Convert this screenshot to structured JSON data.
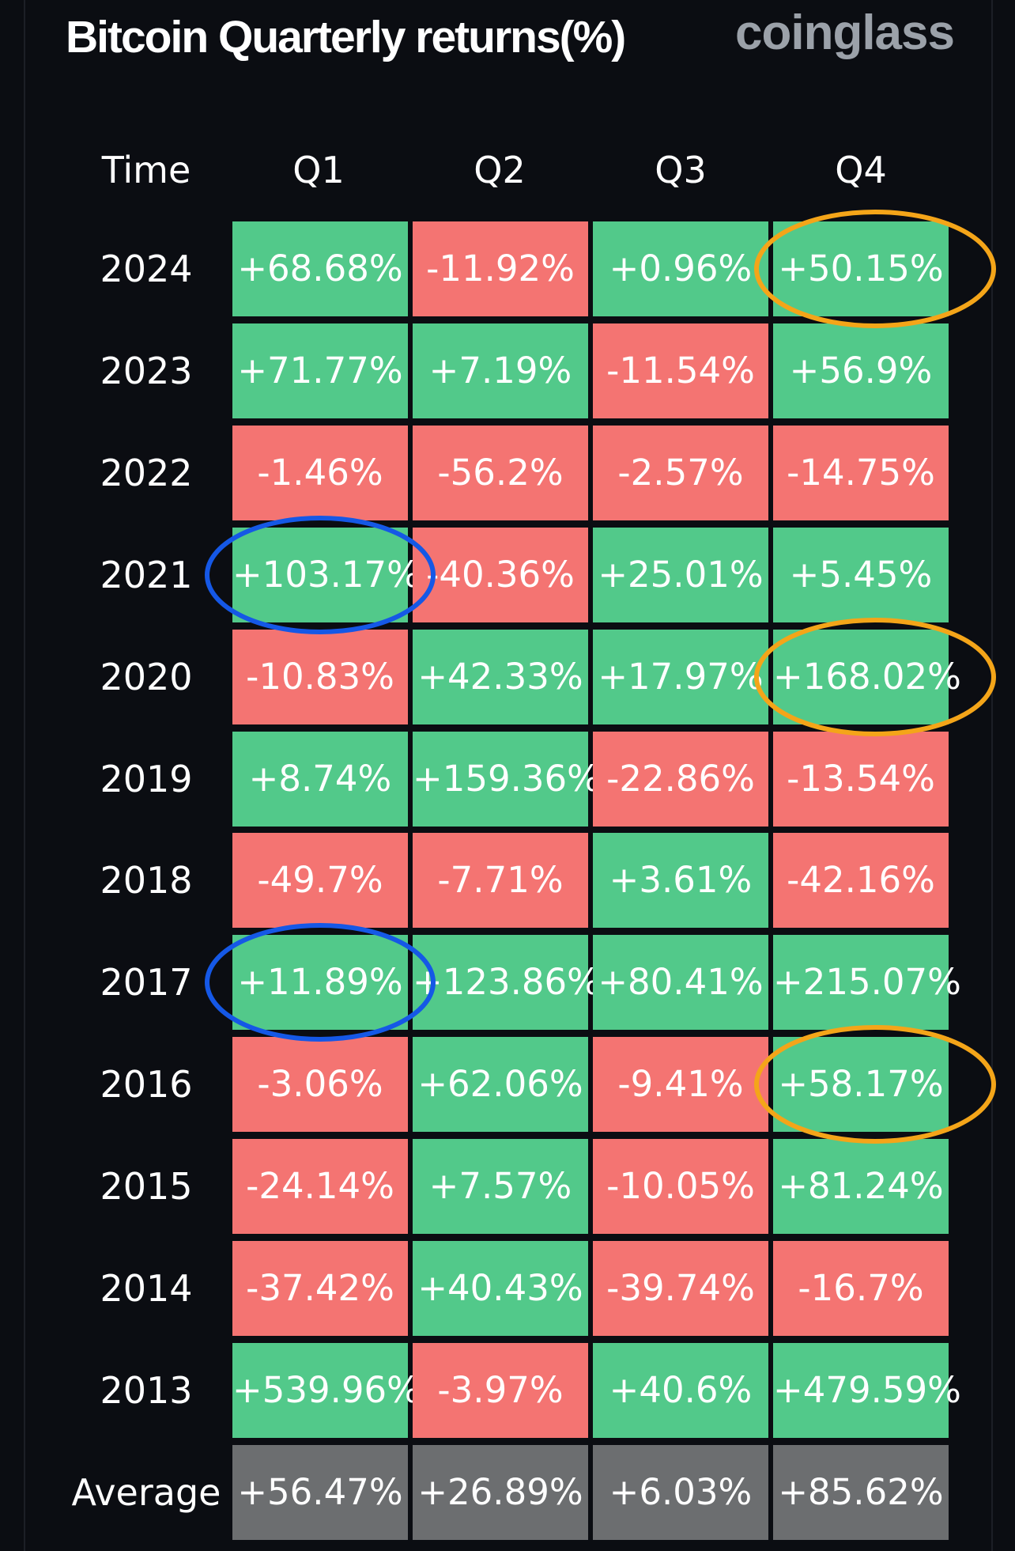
{
  "title": "Bitcoin Quarterly returns(%)",
  "brand": "coinglass",
  "colors": {
    "positive": "#52c98a",
    "negative": "#f47472",
    "average": "#6c6e70",
    "highlight_orange": "#f4a519",
    "highlight_blue": "#1558e6"
  },
  "chart_data": {
    "type": "table",
    "title": "Bitcoin Quarterly returns(%)",
    "columns": [
      "Time",
      "Q1",
      "Q2",
      "Q3",
      "Q4"
    ],
    "rows": [
      {
        "label": "2024",
        "values": [
          "+68.68%",
          "-11.92%",
          "+0.96%",
          "+50.15%"
        ]
      },
      {
        "label": "2023",
        "values": [
          "+71.77%",
          "+7.19%",
          "-11.54%",
          "+56.9%"
        ]
      },
      {
        "label": "2022",
        "values": [
          "-1.46%",
          "-56.2%",
          "-2.57%",
          "-14.75%"
        ]
      },
      {
        "label": "2021",
        "values": [
          "+103.17%",
          "-40.36%",
          "+25.01%",
          "+5.45%"
        ]
      },
      {
        "label": "2020",
        "values": [
          "-10.83%",
          "+42.33%",
          "+17.97%",
          "+168.02%"
        ]
      },
      {
        "label": "2019",
        "values": [
          "+8.74%",
          "+159.36%",
          "-22.86%",
          "-13.54%"
        ]
      },
      {
        "label": "2018",
        "values": [
          "-49.7%",
          "-7.71%",
          "+3.61%",
          "-42.16%"
        ]
      },
      {
        "label": "2017",
        "values": [
          "+11.89%",
          "+123.86%",
          "+80.41%",
          "+215.07%"
        ]
      },
      {
        "label": "2016",
        "values": [
          "-3.06%",
          "+62.06%",
          "-9.41%",
          "+58.17%"
        ]
      },
      {
        "label": "2015",
        "values": [
          "-24.14%",
          "+7.57%",
          "-10.05%",
          "+81.24%"
        ]
      },
      {
        "label": "2014",
        "values": [
          "-37.42%",
          "+40.43%",
          "-39.74%",
          "-16.7%"
        ]
      },
      {
        "label": "2013",
        "values": [
          "+539.96%",
          "-3.97%",
          "+40.6%",
          "+479.59%"
        ]
      }
    ],
    "average": {
      "label": "Average",
      "values": [
        "+56.47%",
        "+26.89%",
        "+6.03%",
        "+85.62%"
      ]
    },
    "highlights": [
      {
        "row": "2024",
        "column": "Q4",
        "color": "orange"
      },
      {
        "row": "2020",
        "column": "Q4",
        "color": "orange"
      },
      {
        "row": "2016",
        "column": "Q4",
        "color": "orange"
      },
      {
        "row": "2021",
        "column": "Q1",
        "color": "blue"
      },
      {
        "row": "2017",
        "column": "Q1",
        "color": "blue"
      }
    ]
  }
}
